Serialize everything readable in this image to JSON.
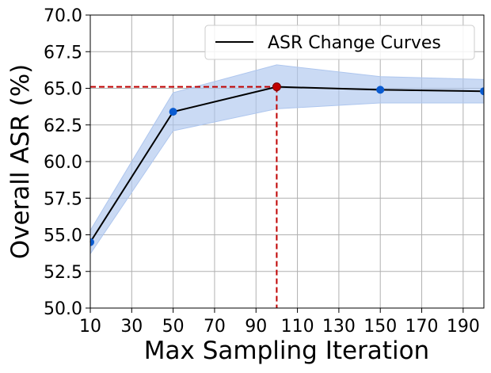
{
  "chart_data": {
    "type": "line",
    "xlabel": "Max Sampling Iteration",
    "ylabel": "Overall ASR (%)",
    "xlim": [
      10,
      200
    ],
    "ylim": [
      50.0,
      70.0
    ],
    "x_ticks": [
      10,
      30,
      50,
      70,
      90,
      110,
      130,
      150,
      170,
      190
    ],
    "x_tick_labels": [
      "10",
      "30",
      "50",
      "70",
      "90",
      "110",
      "130",
      "150",
      "170",
      "190"
    ],
    "y_ticks": [
      50.0,
      52.5,
      55.0,
      57.5,
      60.0,
      62.5,
      65.0,
      67.5,
      70.0
    ],
    "y_tick_labels": [
      "50.0",
      "52.5",
      "55.0",
      "57.5",
      "60.0",
      "62.5",
      "65.0",
      "67.5",
      "70.0"
    ],
    "grid": true,
    "legend_position": "top-right",
    "series": [
      {
        "name": "ASR Change Curves",
        "x": [
          10,
          50,
          100,
          150,
          200
        ],
        "y": [
          54.5,
          63.4,
          65.1,
          64.9,
          64.8
        ],
        "lower": [
          53.7,
          62.1,
          63.6,
          64.0,
          64.0
        ],
        "upper": [
          55.3,
          64.7,
          66.6,
          65.8,
          65.6
        ],
        "line_color": "#000000",
        "marker_color": "#0a5bd0",
        "band_color": "#aec6ee"
      }
    ],
    "highlight": {
      "x": 100,
      "y": 65.1,
      "color": "#c00000"
    }
  }
}
